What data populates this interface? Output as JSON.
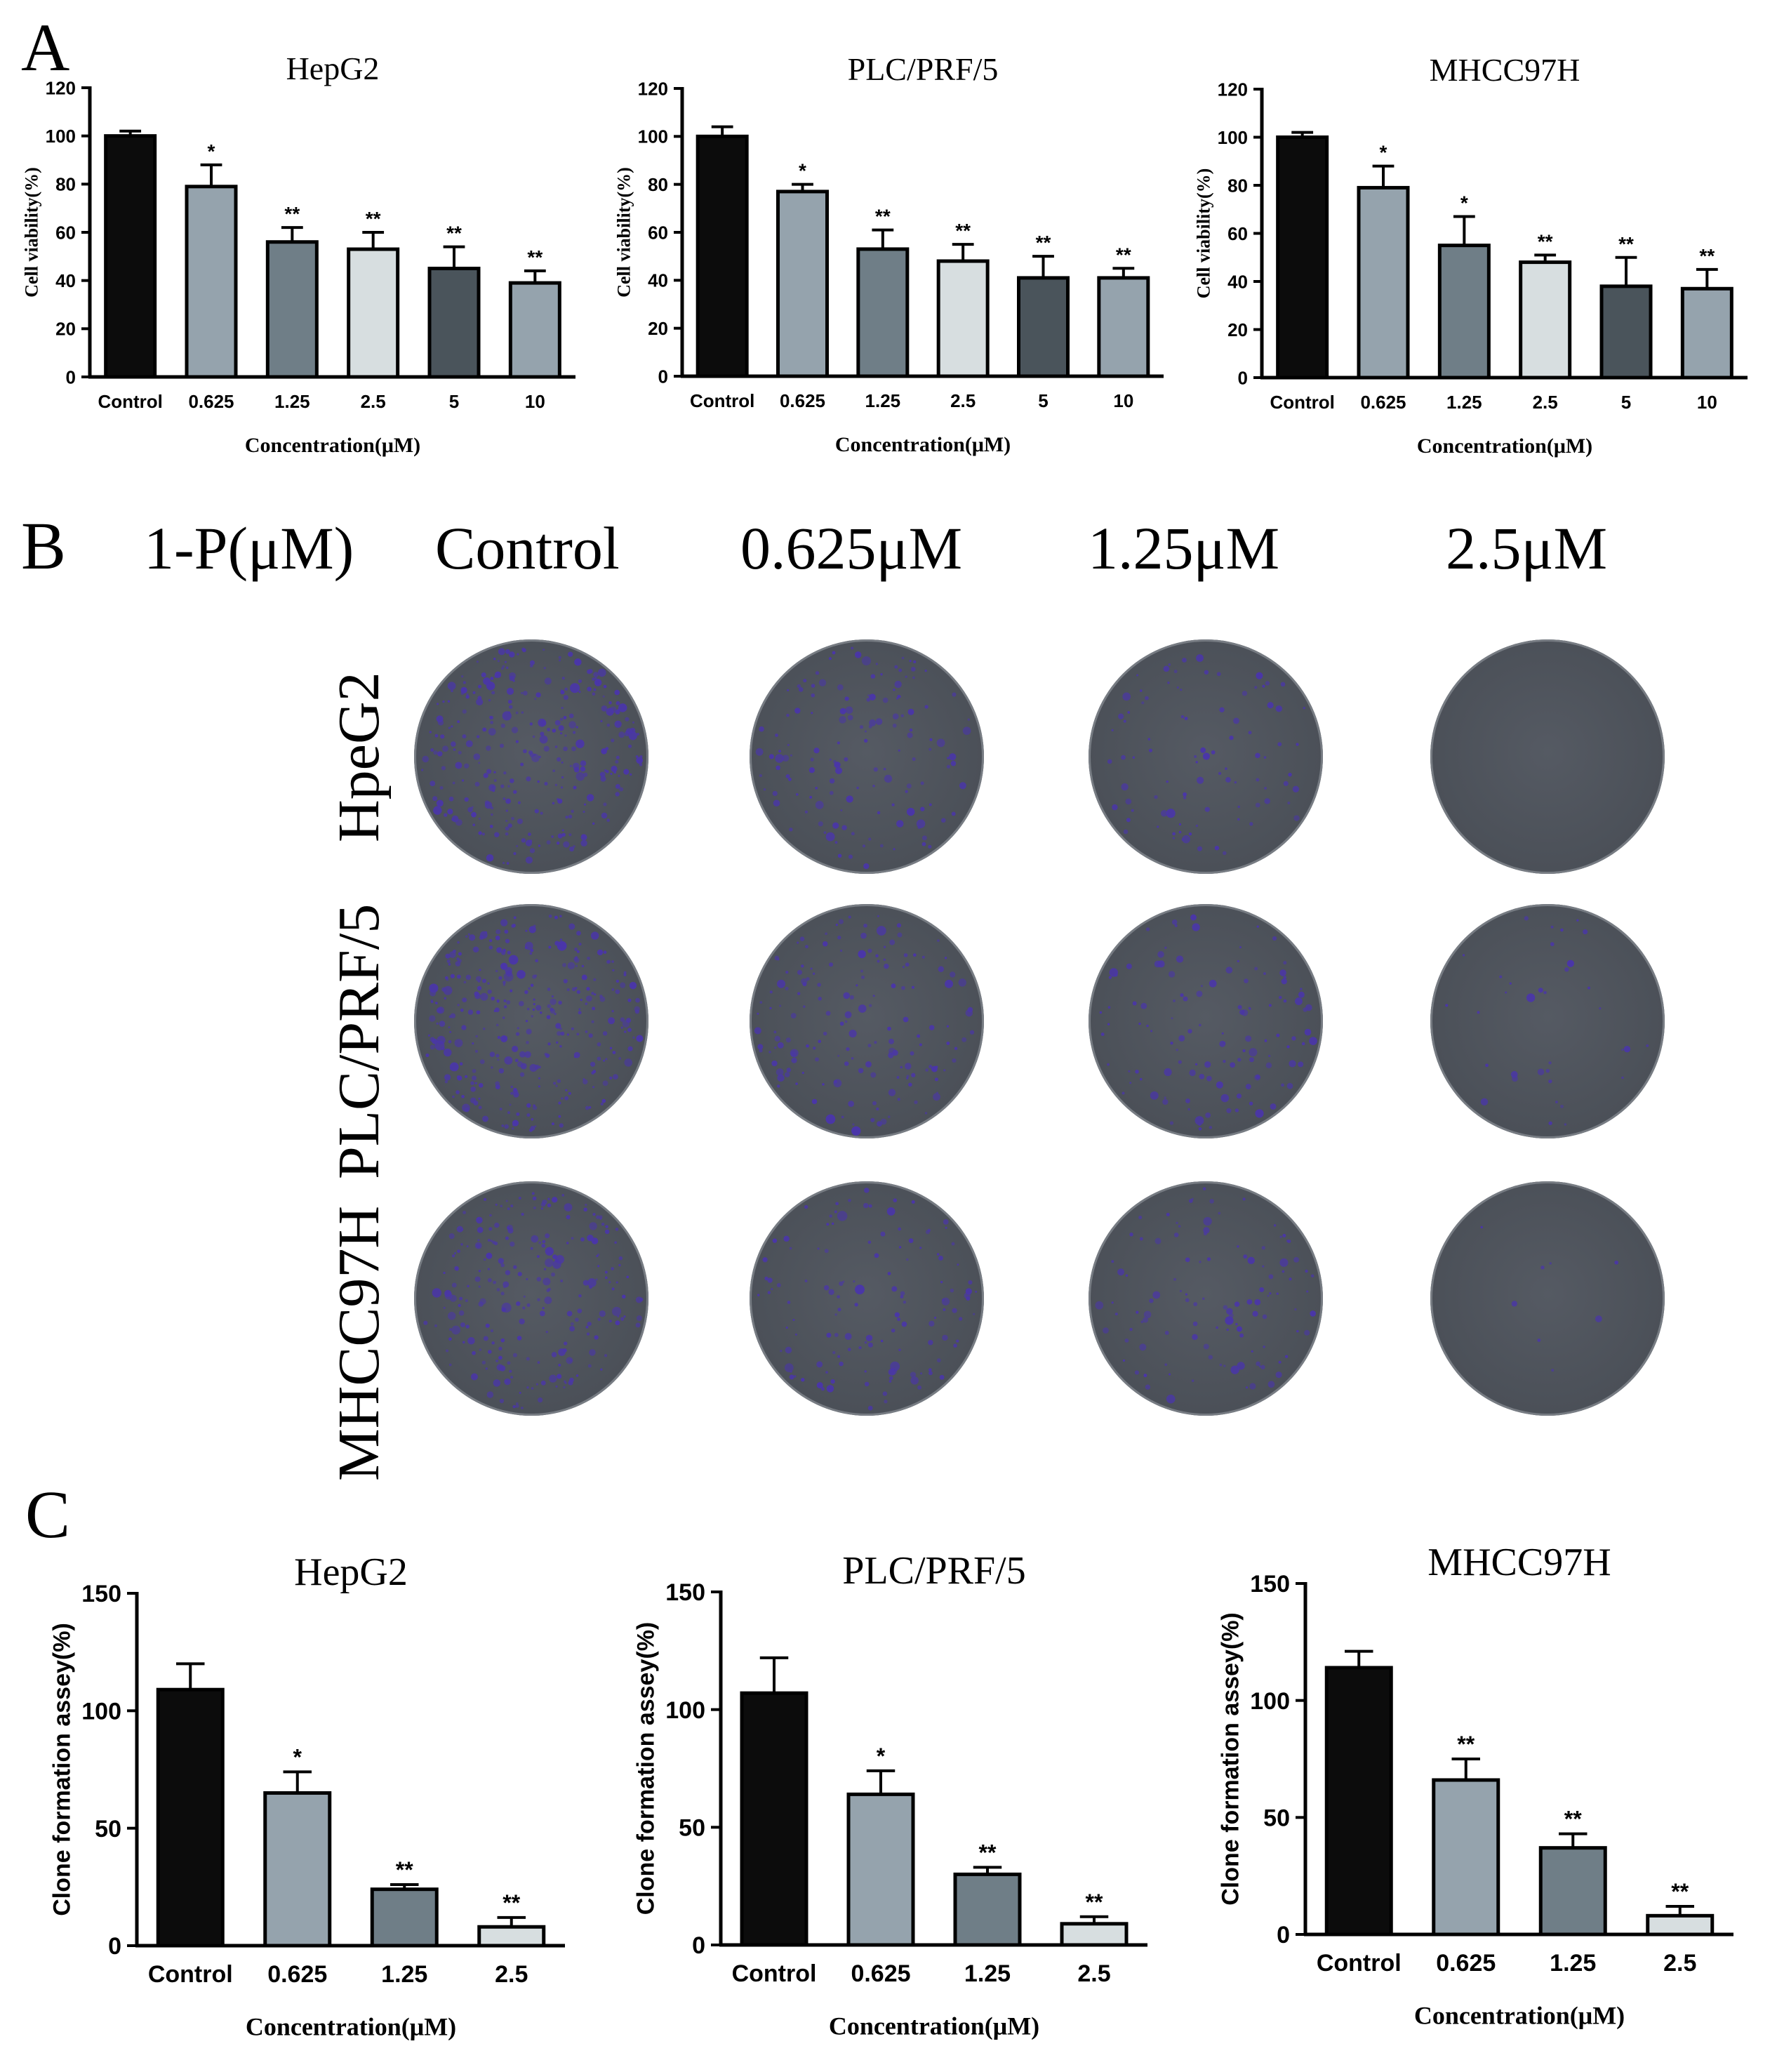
{
  "panels": {
    "a": "A",
    "b": "B",
    "c": "C"
  },
  "colors": {
    "bar_fills": [
      "#0c0c0c",
      "#95a3ad",
      "#6f7e87",
      "#d7dee0",
      "#4a545b",
      "#95a3ad"
    ],
    "axis": "#000000",
    "plate_base": "#4b5058",
    "plate_rim": "#8c9096",
    "colony": "#4a36a8"
  },
  "chart_data": [
    {
      "id": "A1",
      "type": "bar",
      "title": "HepG2",
      "categories": [
        "Control",
        "0.625",
        "1.25",
        "2.5",
        "5",
        "10"
      ],
      "values": [
        100,
        79,
        56,
        53,
        45,
        39
      ],
      "errors": [
        2,
        9,
        6,
        7,
        9,
        5
      ],
      "significance": [
        "",
        "*",
        "**",
        "**",
        "**",
        "**"
      ],
      "xlabel": "Concentration(μM)",
      "ylabel": "Cell viability(%)",
      "ylim": [
        0,
        120
      ],
      "yticks": [
        0,
        20,
        40,
        60,
        80,
        100,
        120
      ]
    },
    {
      "id": "A2",
      "type": "bar",
      "title": "PLC/PRF/5",
      "categories": [
        "Control",
        "0.625",
        "1.25",
        "2.5",
        "5",
        "10"
      ],
      "values": [
        100,
        77,
        53,
        48,
        41,
        41
      ],
      "errors": [
        4,
        3,
        8,
        7,
        9,
        4
      ],
      "significance": [
        "",
        "*",
        "**",
        "**",
        "**",
        "**"
      ],
      "xlabel": "Concentration(μM)",
      "ylabel": "Cell viability(%)",
      "ylim": [
        0,
        120
      ],
      "yticks": [
        0,
        20,
        40,
        60,
        80,
        100,
        120
      ]
    },
    {
      "id": "A3",
      "type": "bar",
      "title": "MHCC97H",
      "categories": [
        "Control",
        "0.625",
        "1.25",
        "2.5",
        "5",
        "10"
      ],
      "values": [
        100,
        79,
        55,
        48,
        38,
        37
      ],
      "errors": [
        2,
        9,
        12,
        3,
        12,
        8
      ],
      "significance": [
        "",
        "*",
        "*",
        "**",
        "**",
        "**"
      ],
      "xlabel": "Concentration(μM)",
      "ylabel": "Cell viability(%)",
      "ylim": [
        0,
        120
      ],
      "yticks": [
        0,
        20,
        40,
        60,
        80,
        100,
        120
      ]
    },
    {
      "id": "C1",
      "type": "bar",
      "title": "HepG2",
      "categories": [
        "Control",
        "0.625",
        "1.25",
        "2.5"
      ],
      "values": [
        109,
        65,
        24,
        8
      ],
      "errors": [
        11,
        9,
        2,
        4
      ],
      "significance": [
        "",
        "*",
        "**",
        "**"
      ],
      "xlabel": "Concentration(μM)",
      "ylabel": "Clone formation assey(%)",
      "ylim": [
        0,
        150
      ],
      "yticks": [
        0,
        50,
        100,
        150
      ]
    },
    {
      "id": "C2",
      "type": "bar",
      "title": "PLC/PRF/5",
      "categories": [
        "Control",
        "0.625",
        "1.25",
        "2.5"
      ],
      "values": [
        107,
        64,
        30,
        9
      ],
      "errors": [
        15,
        10,
        3,
        3
      ],
      "significance": [
        "",
        "*",
        "**",
        "**"
      ],
      "xlabel": "Concentration(μM)",
      "ylabel": "Clone formation assey(%)",
      "ylim": [
        0,
        150
      ],
      "yticks": [
        0,
        50,
        100,
        150
      ]
    },
    {
      "id": "C3",
      "type": "bar",
      "title": "MHCC97H",
      "categories": [
        "Control",
        "0.625",
        "1.25",
        "2.5"
      ],
      "values": [
        114,
        66,
        37,
        8
      ],
      "errors": [
        7,
        9,
        6,
        4
      ],
      "significance": [
        "",
        "**",
        "**",
        "**"
      ],
      "xlabel": "Concentration(μM)",
      "ylabel": "Clone formation assey(%)",
      "ylim": [
        0,
        150
      ],
      "yticks": [
        0,
        50,
        100,
        150
      ]
    }
  ],
  "panel_b": {
    "treatment_label": "1-P(μM)",
    "columns": [
      "Control",
      "0.625μM",
      "1.25μM",
      "2.5μM"
    ],
    "rows": [
      "HpeG2",
      "PLC/PRF/5",
      "MHCC97H"
    ],
    "colony_density": [
      [
        300,
        140,
        90,
        0
      ],
      [
        340,
        160,
        120,
        35
      ],
      [
        240,
        130,
        110,
        8
      ]
    ]
  }
}
